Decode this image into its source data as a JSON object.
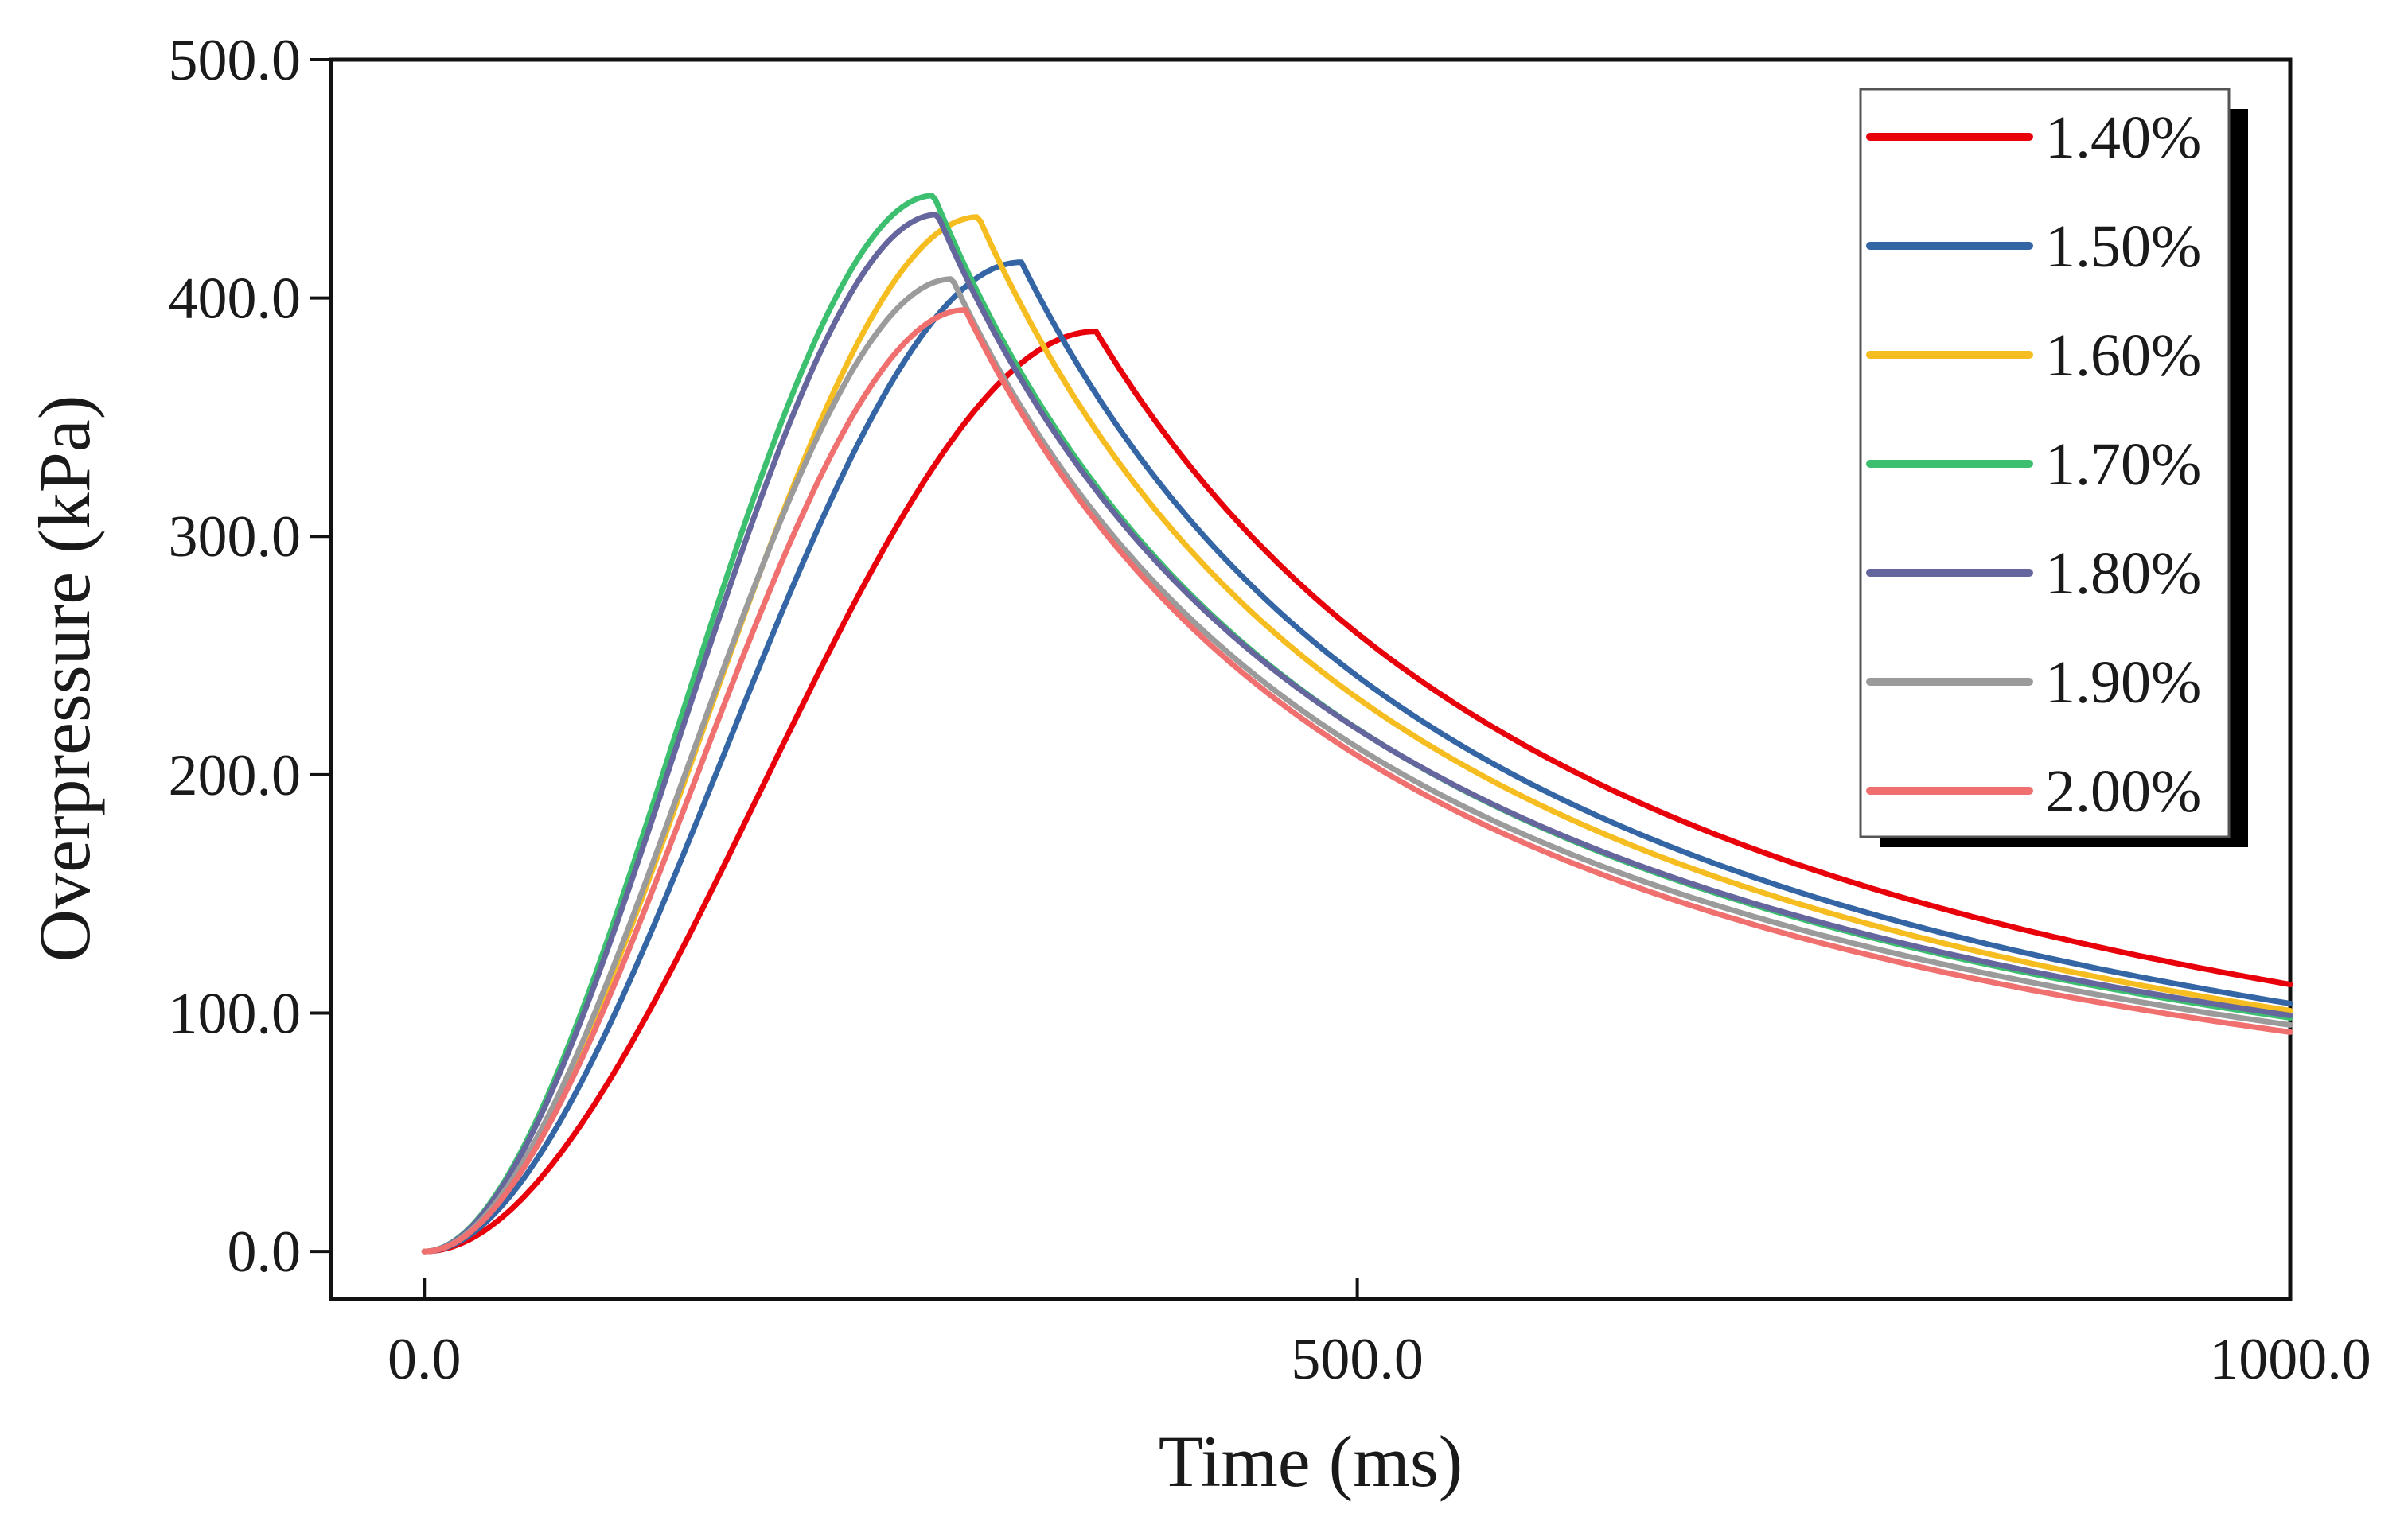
{
  "chart_data": {
    "type": "line",
    "title": "",
    "xlabel": "Time (ms)",
    "ylabel": "Overpressure (kPa)",
    "xlim": [
      -50,
      1000
    ],
    "ylim": [
      -20,
      500
    ],
    "x_ticks": [
      0,
      500,
      1000
    ],
    "x_tick_labels": [
      "0.0",
      "500.0",
      "1000.0"
    ],
    "y_ticks": [
      0,
      100,
      200,
      300,
      400,
      500
    ],
    "y_tick_labels": [
      "0.0",
      "100.0",
      "200.0",
      "300.0",
      "400.0",
      "500.0"
    ],
    "grid": false,
    "legend_position": "top-right",
    "series": [
      {
        "name": "1.40%",
        "color": "#e8000b",
        "peak_time": 360,
        "peak_value": 386,
        "end_value": 112
      },
      {
        "name": "1.50%",
        "color": "#3465a4",
        "peak_time": 320,
        "peak_value": 415,
        "end_value": 104
      },
      {
        "name": "1.60%",
        "color": "#f5bd1f",
        "peak_time": 297,
        "peak_value": 434,
        "end_value": 101
      },
      {
        "name": "1.70%",
        "color": "#3cbf6f",
        "peak_time": 273,
        "peak_value": 443,
        "end_value": 98
      },
      {
        "name": "1.80%",
        "color": "#66669e",
        "peak_time": 275,
        "peak_value": 435,
        "end_value": 99
      },
      {
        "name": "1.90%",
        "color": "#9b9b9b",
        "peak_time": 283,
        "peak_value": 408,
        "end_value": 95
      },
      {
        "name": "2.00%",
        "color": "#f07070",
        "peak_time": 290,
        "peak_value": 395,
        "end_value": 92
      }
    ]
  }
}
